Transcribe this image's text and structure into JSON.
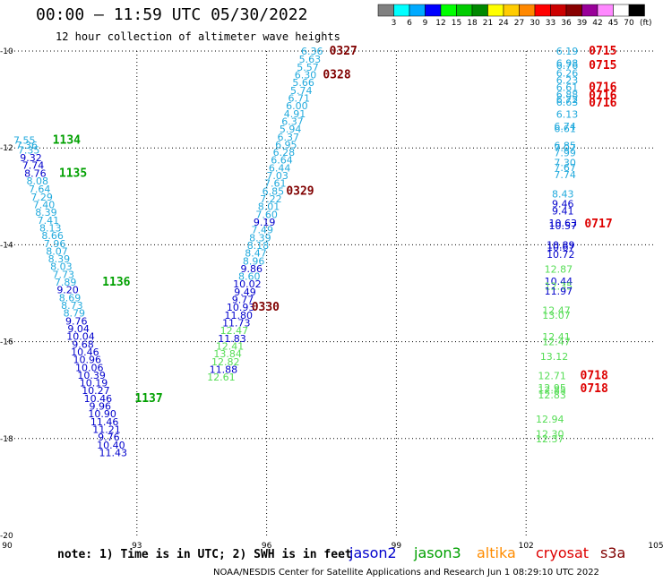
{
  "title": "00:00 — 11:59 UTC 05/30/2022",
  "subtitle": "12 hour collection of altimeter wave heights",
  "note": "note: 1) Time is in UTC; 2) SWH is in feet",
  "credit": "NOAA/NESDIS Center for Satellite Applications and Research    Jun  1 08:29:10 UTC 2022",
  "satellites": [
    {
      "name": "jason2",
      "color": "#0000cc"
    },
    {
      "name": "jason3",
      "color": "#00a000"
    },
    {
      "name": "altika",
      "color": "#ff8c00"
    },
    {
      "name": "cryosat",
      "color": "#dd0000"
    },
    {
      "name": "s3a",
      "color": "#800000"
    }
  ],
  "colorbar": {
    "unit": "(ft)",
    "labels": [
      "3",
      "6",
      "9",
      "12",
      "15",
      "18",
      "21",
      "24",
      "27",
      "30",
      "33",
      "36",
      "39",
      "42",
      "45",
      "70"
    ],
    "colors": [
      "#808080",
      "#00ffff",
      "#00aaff",
      "#0000ff",
      "#00ff00",
      "#00cc00",
      "#008800",
      "#ffff00",
      "#ffcc00",
      "#ff8800",
      "#ff0000",
      "#cc0000",
      "#880000",
      "#990099",
      "#ff88ff",
      "#ffffff",
      "#000000"
    ]
  },
  "chart_data": {
    "type": "scatter",
    "xlim": [
      90,
      105
    ],
    "ylim": [
      -20,
      -10
    ],
    "xticks": [
      "90",
      "93",
      "96",
      "99",
      "102",
      "105"
    ],
    "yticks": [
      "-10",
      "-12",
      "-14",
      "-16",
      "-18",
      "-20"
    ],
    "grid": true,
    "points": [
      {
        "x": 90.4,
        "y": -11.84,
        "label": "7.55",
        "c": "#22aadd"
      },
      {
        "x": 90.45,
        "y": -11.94,
        "label": "7.36",
        "c": "#22aadd"
      },
      {
        "x": 90.5,
        "y": -12.04,
        "label": "7.35",
        "c": "#22aadd"
      },
      {
        "x": 90.55,
        "y": -12.2,
        "label": "9.32",
        "c": "#0000cc"
      },
      {
        "x": 90.6,
        "y": -12.36,
        "label": "7.74",
        "c": "#0000cc"
      },
      {
        "x": 90.65,
        "y": -12.52,
        "label": "8.76",
        "c": "#0000cc"
      },
      {
        "x": 90.7,
        "y": -12.68,
        "label": "8.08",
        "c": "#22aadd"
      },
      {
        "x": 90.75,
        "y": -12.85,
        "label": "7.64",
        "c": "#22aadd"
      },
      {
        "x": 90.8,
        "y": -13.01,
        "label": "7.29",
        "c": "#22aadd"
      },
      {
        "x": 90.85,
        "y": -13.17,
        "label": "7.40",
        "c": "#22aadd"
      },
      {
        "x": 90.9,
        "y": -13.33,
        "label": "8.39",
        "c": "#22aadd"
      },
      {
        "x": 90.95,
        "y": -13.49,
        "label": "7.41",
        "c": "#22aadd"
      },
      {
        "x": 91.0,
        "y": -13.65,
        "label": "8.13",
        "c": "#22aadd"
      },
      {
        "x": 91.05,
        "y": -13.81,
        "label": "8.66",
        "c": "#22aadd"
      },
      {
        "x": 91.1,
        "y": -13.97,
        "label": "7.96",
        "c": "#22aadd"
      },
      {
        "x": 91.15,
        "y": -14.13,
        "label": "8.07",
        "c": "#22aadd"
      },
      {
        "x": 91.2,
        "y": -14.29,
        "label": "8.39",
        "c": "#22aadd"
      },
      {
        "x": 91.25,
        "y": -14.45,
        "label": "8.03",
        "c": "#22aadd"
      },
      {
        "x": 91.3,
        "y": -14.61,
        "label": "7.73",
        "c": "#22aadd"
      },
      {
        "x": 91.35,
        "y": -14.77,
        "label": "7.89",
        "c": "#22aadd"
      },
      {
        "x": 91.4,
        "y": -14.93,
        "label": "9.20",
        "c": "#0000cc"
      },
      {
        "x": 91.45,
        "y": -15.09,
        "label": "8.69",
        "c": "#22aadd"
      },
      {
        "x": 91.5,
        "y": -15.25,
        "label": "8.73",
        "c": "#22aadd"
      },
      {
        "x": 91.55,
        "y": -15.41,
        "label": "8.79",
        "c": "#22aadd"
      },
      {
        "x": 91.6,
        "y": -15.57,
        "label": "9.76",
        "c": "#0000cc"
      },
      {
        "x": 91.65,
        "y": -15.73,
        "label": "9.04",
        "c": "#0000cc"
      },
      {
        "x": 91.7,
        "y": -15.89,
        "label": "10.04",
        "c": "#0000cc"
      },
      {
        "x": 91.75,
        "y": -16.05,
        "label": "9.68",
        "c": "#0000cc"
      },
      {
        "x": 91.8,
        "y": -16.21,
        "label": "10.46",
        "c": "#0000cc"
      },
      {
        "x": 91.85,
        "y": -16.37,
        "label": "10.96",
        "c": "#0000cc"
      },
      {
        "x": 91.9,
        "y": -16.53,
        "label": "10.06",
        "c": "#0000cc"
      },
      {
        "x": 91.95,
        "y": -16.69,
        "label": "10.39",
        "c": "#0000cc"
      },
      {
        "x": 92.0,
        "y": -16.85,
        "label": "10.19",
        "c": "#0000cc"
      },
      {
        "x": 92.05,
        "y": -17.01,
        "label": "10.27",
        "c": "#0000cc"
      },
      {
        "x": 92.1,
        "y": -17.17,
        "label": "10.46",
        "c": "#0000cc"
      },
      {
        "x": 92.15,
        "y": -17.33,
        "label": "9.96",
        "c": "#0000cc"
      },
      {
        "x": 92.2,
        "y": -17.49,
        "label": "10.90",
        "c": "#0000cc"
      },
      {
        "x": 92.25,
        "y": -17.65,
        "label": "11.46",
        "c": "#0000cc"
      },
      {
        "x": 92.3,
        "y": -17.81,
        "label": "11.21",
        "c": "#0000cc"
      },
      {
        "x": 92.35,
        "y": -17.97,
        "label": "9.76",
        "c": "#0000cc"
      },
      {
        "x": 92.4,
        "y": -18.13,
        "label": "10.40",
        "c": "#0000cc"
      },
      {
        "x": 92.45,
        "y": -18.29,
        "label": "11.43",
        "c": "#0000cc"
      },
      {
        "x": 97.05,
        "y": -10.0,
        "label": "6.36",
        "c": "#22aadd"
      },
      {
        "x": 97.0,
        "y": -10.17,
        "label": "5.63",
        "c": "#22aadd"
      },
      {
        "x": 96.95,
        "y": -10.33,
        "label": "5.57",
        "c": "#22aadd"
      },
      {
        "x": 96.9,
        "y": -10.49,
        "label": "6.30",
        "c": "#22aadd"
      },
      {
        "x": 96.85,
        "y": -10.65,
        "label": "5.66",
        "c": "#22aadd"
      },
      {
        "x": 96.8,
        "y": -10.81,
        "label": "5.74",
        "c": "#22aadd"
      },
      {
        "x": 96.75,
        "y": -10.97,
        "label": "6.71",
        "c": "#22aadd"
      },
      {
        "x": 96.7,
        "y": -11.13,
        "label": "6.00",
        "c": "#22aadd"
      },
      {
        "x": 96.65,
        "y": -11.29,
        "label": "4.91",
        "c": "#22aadd"
      },
      {
        "x": 96.6,
        "y": -11.45,
        "label": "6.37",
        "c": "#22aadd"
      },
      {
        "x": 96.55,
        "y": -11.61,
        "label": "5.94",
        "c": "#22aadd"
      },
      {
        "x": 96.5,
        "y": -11.77,
        "label": "6.37",
        "c": "#22aadd"
      },
      {
        "x": 96.45,
        "y": -11.93,
        "label": "6.95",
        "c": "#22aadd"
      },
      {
        "x": 96.4,
        "y": -12.09,
        "label": "6.28",
        "c": "#22aadd"
      },
      {
        "x": 96.35,
        "y": -12.25,
        "label": "6.64",
        "c": "#22aadd"
      },
      {
        "x": 96.3,
        "y": -12.41,
        "label": "6.44",
        "c": "#22aadd"
      },
      {
        "x": 96.25,
        "y": -12.57,
        "label": "7.03",
        "c": "#22aadd"
      },
      {
        "x": 96.2,
        "y": -12.73,
        "label": "7.61",
        "c": "#22aadd"
      },
      {
        "x": 96.15,
        "y": -12.89,
        "label": "6.85",
        "c": "#22aadd"
      },
      {
        "x": 96.1,
        "y": -13.05,
        "label": "7.22",
        "c": "#22aadd"
      },
      {
        "x": 96.05,
        "y": -13.21,
        "label": "8.01",
        "c": "#22aadd"
      },
      {
        "x": 96.0,
        "y": -13.37,
        "label": "7.60",
        "c": "#22aadd"
      },
      {
        "x": 95.95,
        "y": -13.53,
        "label": "9.19",
        "c": "#0000cc"
      },
      {
        "x": 95.9,
        "y": -13.69,
        "label": "7.49",
        "c": "#22aadd"
      },
      {
        "x": 95.85,
        "y": -13.85,
        "label": "8.39",
        "c": "#22aadd"
      },
      {
        "x": 95.8,
        "y": -14.01,
        "label": "8.18",
        "c": "#22aadd"
      },
      {
        "x": 95.75,
        "y": -14.17,
        "label": "8.47",
        "c": "#22aadd"
      },
      {
        "x": 95.7,
        "y": -14.33,
        "label": "8.96",
        "c": "#22aadd"
      },
      {
        "x": 95.65,
        "y": -14.49,
        "label": "9.86",
        "c": "#0000cc"
      },
      {
        "x": 95.6,
        "y": -14.65,
        "label": "8.60",
        "c": "#22aadd"
      },
      {
        "x": 95.55,
        "y": -14.81,
        "label": "10.02",
        "c": "#0000cc"
      },
      {
        "x": 95.5,
        "y": -14.97,
        "label": "9.49",
        "c": "#0000cc"
      },
      {
        "x": 95.45,
        "y": -15.13,
        "label": "9.77",
        "c": "#0000cc"
      },
      {
        "x": 95.4,
        "y": -15.29,
        "label": "10.93",
        "c": "#0000cc"
      },
      {
        "x": 95.35,
        "y": -15.45,
        "label": "11.80",
        "c": "#0000cc"
      },
      {
        "x": 95.3,
        "y": -15.61,
        "label": "11.73",
        "c": "#0000cc"
      },
      {
        "x": 95.25,
        "y": -15.77,
        "label": "12.47",
        "c": "#55dd55"
      },
      {
        "x": 95.2,
        "y": -15.93,
        "label": "11.83",
        "c": "#0000cc"
      },
      {
        "x": 95.15,
        "y": -16.09,
        "label": "12.41",
        "c": "#55dd55"
      },
      {
        "x": 95.1,
        "y": -16.25,
        "label": "13.84",
        "c": "#55dd55"
      },
      {
        "x": 95.05,
        "y": -16.41,
        "label": "12.82",
        "c": "#55dd55"
      },
      {
        "x": 95.0,
        "y": -16.57,
        "label": "11.88",
        "c": "#0000cc"
      },
      {
        "x": 94.95,
        "y": -16.73,
        "label": "12.61",
        "c": "#55dd55"
      },
      {
        "x": 102.95,
        "y": -10.0,
        "label": "6.19",
        "c": "#22aadd"
      },
      {
        "x": 102.95,
        "y": -10.25,
        "label": "6.98",
        "c": "#22aadd"
      },
      {
        "x": 102.95,
        "y": -10.3,
        "label": "6.76",
        "c": "#22aadd"
      },
      {
        "x": 102.95,
        "y": -10.45,
        "label": "6.26",
        "c": "#22aadd"
      },
      {
        "x": 102.95,
        "y": -10.6,
        "label": "6.23",
        "c": "#22aadd"
      },
      {
        "x": 102.95,
        "y": -10.75,
        "label": "6.61",
        "c": "#22aadd"
      },
      {
        "x": 102.95,
        "y": -10.9,
        "label": "6.88",
        "c": "#22aadd"
      },
      {
        "x": 102.95,
        "y": -11.0,
        "label": "6.72",
        "c": "#22aadd"
      },
      {
        "x": 102.95,
        "y": -11.05,
        "label": "6.63",
        "c": "#22aadd"
      },
      {
        "x": 102.95,
        "y": -11.3,
        "label": "6.13",
        "c": "#22aadd"
      },
      {
        "x": 102.9,
        "y": -11.55,
        "label": "6.74",
        "c": "#22aadd"
      },
      {
        "x": 102.9,
        "y": -11.6,
        "label": "6.61",
        "c": "#22aadd"
      },
      {
        "x": 102.9,
        "y": -11.95,
        "label": "6.85",
        "c": "#22aadd"
      },
      {
        "x": 102.9,
        "y": -12.0,
        "label": "7.07",
        "c": "#22aadd"
      },
      {
        "x": 102.9,
        "y": -12.1,
        "label": "7.99",
        "c": "#22aadd"
      },
      {
        "x": 102.9,
        "y": -12.3,
        "label": "7.30",
        "c": "#22aadd"
      },
      {
        "x": 102.9,
        "y": -12.4,
        "label": "7.67",
        "c": "#22aadd"
      },
      {
        "x": 102.9,
        "y": -12.55,
        "label": "7.74",
        "c": "#22aadd"
      },
      {
        "x": 102.85,
        "y": -12.95,
        "label": "8.43",
        "c": "#22aadd"
      },
      {
        "x": 102.85,
        "y": -13.15,
        "label": "9.46",
        "c": "#0000cc"
      },
      {
        "x": 102.85,
        "y": -13.3,
        "label": "9.41",
        "c": "#0000cc"
      },
      {
        "x": 102.85,
        "y": -13.55,
        "label": "10.63",
        "c": "#0000cc"
      },
      {
        "x": 102.85,
        "y": -13.6,
        "label": "10.57",
        "c": "#0000cc"
      },
      {
        "x": 102.8,
        "y": -14.0,
        "label": "10.89",
        "c": "#0000cc"
      },
      {
        "x": 102.8,
        "y": -14.05,
        "label": "10.67",
        "c": "#0000cc"
      },
      {
        "x": 102.8,
        "y": -14.2,
        "label": "10.72",
        "c": "#0000cc"
      },
      {
        "x": 102.75,
        "y": -14.5,
        "label": "12.87",
        "c": "#55dd55"
      },
      {
        "x": 102.75,
        "y": -14.75,
        "label": "10.44",
        "c": "#0000cc"
      },
      {
        "x": 102.75,
        "y": -14.85,
        "label": "12.35",
        "c": "#55dd55"
      },
      {
        "x": 102.75,
        "y": -14.95,
        "label": "11.97",
        "c": "#0000cc"
      },
      {
        "x": 102.7,
        "y": -15.35,
        "label": "12.47",
        "c": "#55dd55"
      },
      {
        "x": 102.7,
        "y": -15.45,
        "label": "13.07",
        "c": "#55dd55"
      },
      {
        "x": 102.7,
        "y": -15.9,
        "label": "12.41",
        "c": "#55dd55"
      },
      {
        "x": 102.7,
        "y": -16.0,
        "label": "12.47",
        "c": "#55dd55"
      },
      {
        "x": 102.65,
        "y": -16.3,
        "label": "13.12",
        "c": "#55dd55"
      },
      {
        "x": 102.6,
        "y": -16.7,
        "label": "12.71",
        "c": "#55dd55"
      },
      {
        "x": 102.6,
        "y": -16.95,
        "label": "12.95",
        "c": "#55dd55"
      },
      {
        "x": 102.6,
        "y": -17.0,
        "label": "12.85",
        "c": "#55dd55"
      },
      {
        "x": 102.6,
        "y": -17.1,
        "label": "12.83",
        "c": "#55dd55"
      },
      {
        "x": 102.55,
        "y": -17.6,
        "label": "12.94",
        "c": "#55dd55"
      },
      {
        "x": 102.55,
        "y": -17.9,
        "label": "12.30",
        "c": "#55dd55"
      },
      {
        "x": 102.55,
        "y": -18.0,
        "label": "12.37",
        "c": "#55dd55"
      }
    ],
    "annotations": [
      {
        "x": 97.45,
        "y": -10.0,
        "label": "0327",
        "c": "#800000"
      },
      {
        "x": 97.3,
        "y": -10.49,
        "label": "0328",
        "c": "#800000"
      },
      {
        "x": 96.45,
        "y": -12.89,
        "label": "0329",
        "c": "#800000"
      },
      {
        "x": 95.65,
        "y": -15.29,
        "label": "0330",
        "c": "#800000"
      },
      {
        "x": 91.05,
        "y": -11.84,
        "label": "1134",
        "c": "#00a000"
      },
      {
        "x": 91.2,
        "y": -12.52,
        "label": "1135",
        "c": "#00a000"
      },
      {
        "x": 92.2,
        "y": -14.77,
        "label": "1136",
        "c": "#00a000"
      },
      {
        "x": 92.95,
        "y": -17.17,
        "label": "1137",
        "c": "#00a000"
      },
      {
        "x": 103.45,
        "y": -10.0,
        "label": "0715",
        "c": "#dd0000"
      },
      {
        "x": 103.45,
        "y": -10.3,
        "label": "0715",
        "c": "#dd0000"
      },
      {
        "x": 103.45,
        "y": -10.75,
        "label": "0716",
        "c": "#dd0000"
      },
      {
        "x": 103.45,
        "y": -10.92,
        "label": "0716",
        "c": "#dd0000"
      },
      {
        "x": 103.45,
        "y": -11.07,
        "label": "0716",
        "c": "#dd0000"
      },
      {
        "x": 103.35,
        "y": -13.57,
        "label": "0717",
        "c": "#dd0000"
      },
      {
        "x": 103.25,
        "y": -16.7,
        "label": "0718",
        "c": "#dd0000"
      },
      {
        "x": 103.25,
        "y": -16.97,
        "label": "0718",
        "c": "#dd0000"
      }
    ]
  }
}
